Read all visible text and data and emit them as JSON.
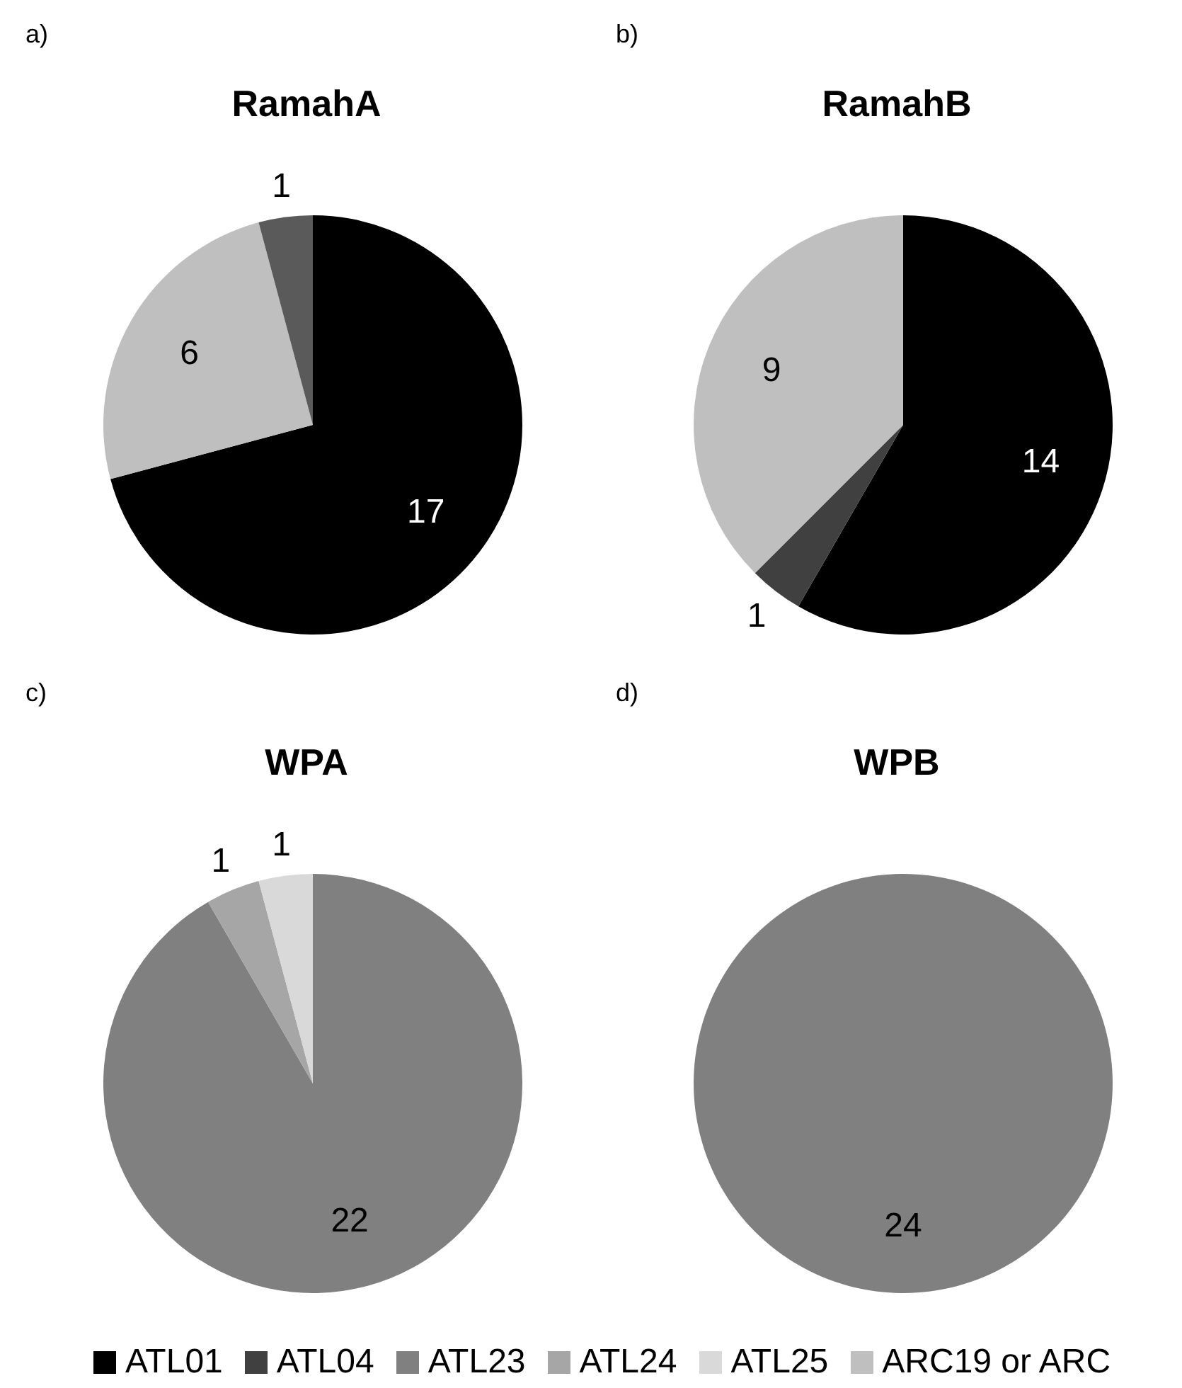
{
  "chart_data": [
    {
      "type": "pie",
      "title": "RamahA",
      "annotations": [
        "a)"
      ],
      "categories": [
        "ATL01",
        "ATL04",
        "ATL23",
        "ATL24",
        "ATL25",
        "ARC19 or ARC",
        null
      ],
      "values": [
        17,
        0,
        0,
        0,
        0,
        6,
        1
      ],
      "colors": [
        "#000000",
        "#404040",
        "#808080",
        "#a6a6a6",
        "#d9d9d9",
        "#bfbfbf",
        "#5a5a5a"
      ],
      "data_labels": true,
      "legend": "bottom"
    },
    {
      "type": "pie",
      "title": "RamahB",
      "annotations": [
        "b)"
      ],
      "categories": [
        null,
        null,
        null
      ],
      "values": [
        14,
        1,
        9
      ],
      "colors": [
        "#000000",
        "#404040",
        "#bfbfbf"
      ],
      "data_labels": true
    },
    {
      "type": "pie",
      "title": "WPA",
      "annotations": [
        "c)"
      ],
      "categories": [
        null,
        null,
        null
      ],
      "values": [
        22,
        1,
        1
      ],
      "colors": [
        "#808080",
        "#a6a6a6",
        "#d9d9d9"
      ],
      "data_labels": true
    },
    {
      "type": "pie",
      "title": "WPB",
      "annotations": [
        "d)"
      ],
      "categories": [
        null
      ],
      "values": [
        24
      ],
      "colors": [
        "#808080"
      ],
      "data_labels": true
    }
  ]
}
